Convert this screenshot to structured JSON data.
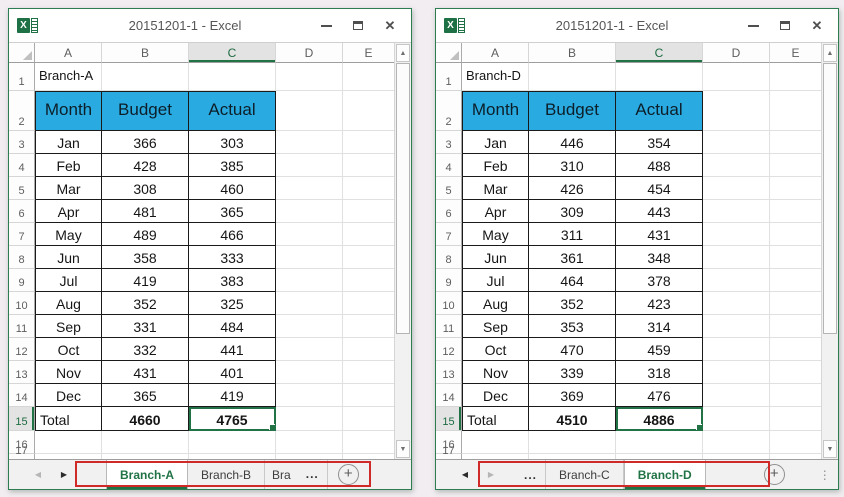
{
  "icons": {
    "minimize": "minimize",
    "maximize": "maximize",
    "close": "✕",
    "nav_left": "◀",
    "nav_right": "▶",
    "scroll_up": "▲",
    "scroll_down": "▼",
    "add_sheet": "+",
    "more_tabs": "⋮",
    "excel_logo_letter": "X"
  },
  "colors": {
    "window_border": "#2e7d52",
    "table_header_fill": "#29abe2",
    "active_green": "#217346",
    "annotation_red": "#cf2a27"
  },
  "windows": [
    {
      "title": "20151201-1 - Excel",
      "cell_a1": "Branch-A",
      "columns": [
        "A",
        "B",
        "C",
        "D",
        "E"
      ],
      "selected_column": "C",
      "selected_row": 15,
      "row_count": 17,
      "table": {
        "headers": [
          "Month",
          "Budget",
          "Actual"
        ],
        "rows": [
          [
            "Jan",
            366,
            303
          ],
          [
            "Feb",
            428,
            385
          ],
          [
            "Mar",
            308,
            460
          ],
          [
            "Apr",
            481,
            365
          ],
          [
            "May",
            489,
            466
          ],
          [
            "Jun",
            358,
            333
          ],
          [
            "Jul",
            419,
            383
          ],
          [
            "Aug",
            352,
            325
          ],
          [
            "Sep",
            331,
            484
          ],
          [
            "Oct",
            332,
            441
          ],
          [
            "Nov",
            431,
            401
          ],
          [
            "Dec",
            365,
            419
          ]
        ],
        "total": [
          "Total",
          4660,
          4765
        ]
      },
      "tabbar": {
        "nav_left_enabled": false,
        "nav_right_enabled": true,
        "segments": [
          {
            "type": "tab",
            "label": "Branch-A",
            "active": true
          },
          {
            "type": "tab",
            "label": "Branch-B",
            "active": false
          },
          {
            "type": "tab",
            "label": "Bra",
            "active": false,
            "truncated": true
          },
          {
            "type": "ellipsis",
            "label": "..."
          },
          {
            "type": "add",
            "label": "+"
          }
        ]
      }
    },
    {
      "title": "20151201-1 - Excel",
      "cell_a1": "Branch-D",
      "columns": [
        "A",
        "B",
        "C",
        "D",
        "E"
      ],
      "selected_column": "C",
      "selected_row": 15,
      "row_count": 17,
      "table": {
        "headers": [
          "Month",
          "Budget",
          "Actual"
        ],
        "rows": [
          [
            "Jan",
            446,
            354
          ],
          [
            "Feb",
            310,
            488
          ],
          [
            "Mar",
            426,
            454
          ],
          [
            "Apr",
            309,
            443
          ],
          [
            "May",
            311,
            431
          ],
          [
            "Jun",
            361,
            348
          ],
          [
            "Jul",
            464,
            378
          ],
          [
            "Aug",
            352,
            423
          ],
          [
            "Sep",
            353,
            314
          ],
          [
            "Oct",
            470,
            459
          ],
          [
            "Nov",
            339,
            318
          ],
          [
            "Dec",
            369,
            476
          ]
        ],
        "total": [
          "Total",
          4510,
          4886
        ]
      },
      "tabbar": {
        "nav_left_enabled": true,
        "nav_right_enabled": false,
        "segments": [
          {
            "type": "ellipsis",
            "label": "..."
          },
          {
            "type": "tab",
            "label": "Branch-C",
            "active": false
          },
          {
            "type": "tab",
            "label": "Branch-D",
            "active": true
          },
          {
            "type": "add",
            "label": "+"
          },
          {
            "type": "more",
            "label": "⋮"
          }
        ]
      }
    }
  ]
}
